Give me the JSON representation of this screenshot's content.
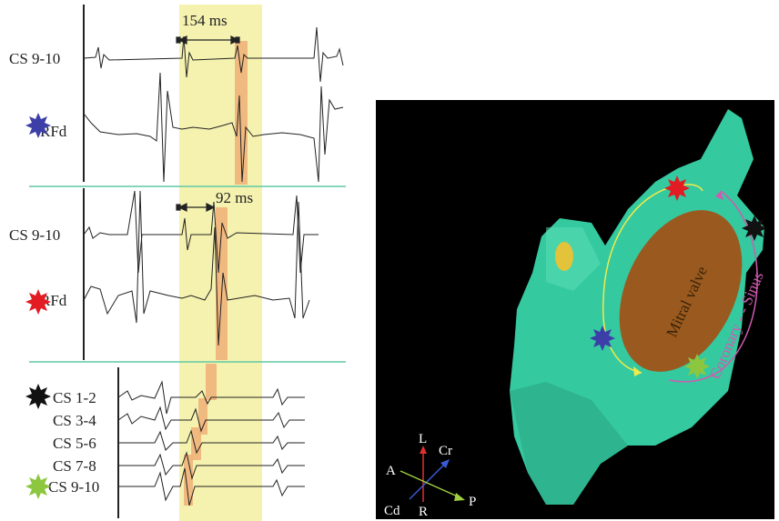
{
  "left_figure": {
    "panel1": {
      "interval_label": "154 ms",
      "channel_labels": [
        "CS 9-10",
        "RFd"
      ]
    },
    "panel2": {
      "interval_label": "92 ms",
      "channel_labels": [
        "CS 9-10",
        "RFd"
      ]
    },
    "panel3": {
      "channel_labels": [
        "CS 1-2",
        "CS 3-4",
        "CS 5-6",
        "CS 7-8",
        "CS 9-10"
      ]
    },
    "colors": {
      "highlight_band": "#f5f2b0",
      "activation_bar": "#f0b27a",
      "separator": "#5fc9a6",
      "star_blue": "#3d3fa8",
      "star_red": "#e31b23",
      "star_black": "#111111",
      "star_green": "#8dc63f"
    }
  },
  "right_figure": {
    "valve_label": "Mitral valve",
    "sinus_label": "Coronary - - Sinus",
    "orientation_labels": {
      "left": "L",
      "cranial": "Cr",
      "anterior": "A",
      "posterior": "P",
      "caudal": "Cd",
      "right": "R"
    },
    "colors": {
      "background": "#000000",
      "chamber": "#35c9a0",
      "valve": "#9a5a1f",
      "arc_yellow": "#f2ea48",
      "arc_magenta": "#d05ab0"
    }
  }
}
